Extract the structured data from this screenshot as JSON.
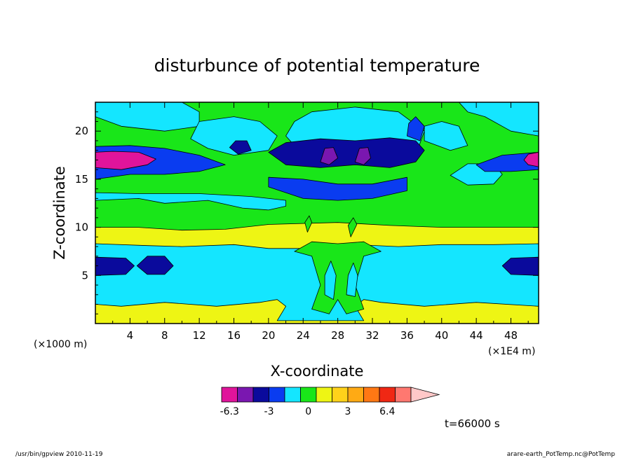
{
  "chart_data": {
    "type": "heatmap",
    "title": "disturbunce of potential temperature",
    "xlabel": "X-coordinate",
    "ylabel": "Z-coordinate",
    "x_unit_left": "(×1000 m)",
    "x_unit_right": "(×1E4 m)",
    "xlim": [
      0,
      51.2
    ],
    "ylim": [
      0,
      23
    ],
    "x_ticks": [
      4,
      8,
      12,
      16,
      20,
      24,
      28,
      32,
      36,
      40,
      44,
      48
    ],
    "y_ticks": [
      5,
      10,
      15,
      20
    ],
    "colorbar": {
      "colors": [
        "#e0149b",
        "#7a17b0",
        "#0a0a9c",
        "#0a3cf0",
        "#14e6ff",
        "#19e619",
        "#eef514",
        "#ffd21a",
        "#ffaa14",
        "#ff7814",
        "#f02814",
        "#ff7870",
        "#ffc8c8"
      ],
      "labels": [
        "-6.3",
        "-3",
        "0",
        "3",
        "6.4"
      ]
    },
    "time_label": "t=66000 s",
    "regions": [
      {
        "level": 4,
        "points": [
          [
            0,
            2
          ],
          [
            3,
            1.8
          ],
          [
            8,
            2.2
          ],
          [
            14,
            1.8
          ],
          [
            19,
            2.2
          ],
          [
            21,
            2.5
          ],
          [
            22,
            1.8
          ],
          [
            21,
            0.3
          ],
          [
            31,
            0.3
          ],
          [
            30,
            1.8
          ],
          [
            31,
            2.5
          ],
          [
            33,
            2.2
          ],
          [
            38,
            1.8
          ],
          [
            44,
            2.2
          ],
          [
            51.2,
            1.8
          ],
          [
            51.2,
            8.3
          ],
          [
            46,
            8.2
          ],
          [
            40,
            8.2
          ],
          [
            35,
            8.0
          ],
          [
            30,
            8.2
          ],
          [
            25,
            7.8
          ],
          [
            20,
            7.8
          ],
          [
            16,
            8.2
          ],
          [
            10,
            8.0
          ],
          [
            6,
            8.1
          ],
          [
            0,
            8.3
          ]
        ]
      },
      {
        "level": 2,
        "points": [
          [
            0,
            5
          ],
          [
            3.5,
            5.1
          ],
          [
            4.5,
            6.0
          ],
          [
            3.5,
            6.8
          ],
          [
            0,
            6.9
          ]
        ]
      },
      {
        "level": 2,
        "points": [
          [
            4.8,
            6.0
          ],
          [
            6,
            5.1
          ],
          [
            8,
            5.1
          ],
          [
            9,
            6.0
          ],
          [
            8,
            7.0
          ],
          [
            6,
            7.0
          ]
        ]
      },
      {
        "level": 2,
        "points": [
          [
            51.2,
            5
          ],
          [
            48,
            5.1
          ],
          [
            47,
            6.0
          ],
          [
            48,
            6.8
          ],
          [
            51.2,
            6.9
          ]
        ]
      },
      {
        "level": 5,
        "points": [
          [
            0,
            10.0
          ],
          [
            5,
            10.0
          ],
          [
            10,
            9.7
          ],
          [
            15,
            9.8
          ],
          [
            20,
            10.3
          ],
          [
            28,
            10.5
          ],
          [
            34,
            10.2
          ],
          [
            40,
            10.0
          ],
          [
            51.2,
            10.0
          ],
          [
            51.2,
            23
          ],
          [
            0,
            23
          ]
        ]
      },
      {
        "level": 4,
        "points": [
          [
            0,
            12.8
          ],
          [
            5,
            13.0
          ],
          [
            8,
            12.5
          ],
          [
            13,
            12.8
          ],
          [
            17,
            12.0
          ],
          [
            20,
            11.8
          ],
          [
            22,
            12.2
          ],
          [
            22,
            12.8
          ],
          [
            18,
            13.2
          ],
          [
            12,
            13.5
          ],
          [
            5,
            13.5
          ],
          [
            0,
            13.6
          ]
        ]
      },
      {
        "level": 4,
        "points": [
          [
            0,
            21.5
          ],
          [
            3,
            20.5
          ],
          [
            8,
            20.0
          ],
          [
            12,
            20.5
          ],
          [
            12,
            22
          ],
          [
            10,
            23
          ],
          [
            0,
            23
          ]
        ]
      },
      {
        "level": 4,
        "points": [
          [
            45,
            21.5
          ],
          [
            48,
            20.0
          ],
          [
            51.2,
            19.5
          ],
          [
            51.2,
            23
          ],
          [
            42,
            23
          ],
          [
            43,
            22
          ]
        ]
      },
      {
        "level": 4,
        "points": [
          [
            11,
            19.2
          ],
          [
            13,
            18.2
          ],
          [
            16,
            17.5
          ],
          [
            20,
            18.0
          ],
          [
            21,
            19.5
          ],
          [
            19,
            21
          ],
          [
            16,
            21.5
          ],
          [
            12,
            21
          ]
        ]
      },
      {
        "level": 4,
        "points": [
          [
            41,
            15.4
          ],
          [
            43,
            14.4
          ],
          [
            46,
            14.5
          ],
          [
            47,
            15.5
          ],
          [
            46,
            16.6
          ],
          [
            43,
            16.6
          ]
        ]
      },
      {
        "level": 4,
        "points": [
          [
            38,
            19.0
          ],
          [
            41,
            18.0
          ],
          [
            43,
            18.5
          ],
          [
            42,
            20.5
          ],
          [
            40,
            21
          ],
          [
            38,
            20.5
          ]
        ]
      },
      {
        "level": 4,
        "points": [
          [
            22,
            19.5
          ],
          [
            24,
            17.5
          ],
          [
            28,
            17.0
          ],
          [
            33,
            17.0
          ],
          [
            37,
            17.5
          ],
          [
            38,
            20
          ],
          [
            35,
            22
          ],
          [
            30,
            22.5
          ],
          [
            25,
            22
          ],
          [
            23,
            21.0
          ]
        ]
      },
      {
        "level": 2,
        "points": [
          [
            20,
            17.8
          ],
          [
            22,
            16.5
          ],
          [
            26,
            16.2
          ],
          [
            30,
            16.5
          ],
          [
            34,
            16.2
          ],
          [
            37,
            16.8
          ],
          [
            38,
            18.0
          ],
          [
            37,
            19.0
          ],
          [
            34,
            19.3
          ],
          [
            30,
            19.0
          ],
          [
            26,
            19.2
          ],
          [
            22,
            18.8
          ]
        ]
      },
      {
        "level": 2,
        "points": [
          [
            15.5,
            18.3
          ],
          [
            16.5,
            17.6
          ],
          [
            18,
            18.0
          ],
          [
            17.5,
            19.0
          ],
          [
            16.2,
            19.0
          ]
        ]
      },
      {
        "level": 1,
        "points": [
          [
            26,
            16.8
          ],
          [
            27,
            16.5
          ],
          [
            28,
            17.2
          ],
          [
            27.5,
            18.3
          ],
          [
            26.5,
            18.2
          ]
        ]
      },
      {
        "level": 1,
        "points": [
          [
            30,
            16.8
          ],
          [
            31,
            16.5
          ],
          [
            31.8,
            17.2
          ],
          [
            31.5,
            18.3
          ],
          [
            30.5,
            18.2
          ]
        ]
      },
      {
        "level": 3,
        "points": [
          [
            0,
            15.0
          ],
          [
            4,
            15.5
          ],
          [
            8,
            15.5
          ],
          [
            12,
            15.8
          ],
          [
            15,
            16.5
          ],
          [
            12,
            17.5
          ],
          [
            8,
            18.2
          ],
          [
            4,
            18.5
          ],
          [
            0,
            18.4
          ]
        ]
      },
      {
        "level": 3,
        "points": [
          [
            44,
            16.5
          ],
          [
            47,
            17.5
          ],
          [
            51.2,
            17.8
          ],
          [
            51.2,
            16.0
          ],
          [
            48,
            15.8
          ],
          [
            45,
            15.8
          ]
        ]
      },
      {
        "level": 3,
        "points": [
          [
            20,
            14.2
          ],
          [
            24,
            13.0
          ],
          [
            28,
            12.8
          ],
          [
            32,
            13.0
          ],
          [
            36,
            13.8
          ],
          [
            36,
            15.2
          ],
          [
            32,
            14.5
          ],
          [
            28,
            14.5
          ],
          [
            24,
            15.0
          ],
          [
            20,
            15.2
          ]
        ]
      },
      {
        "level": 3,
        "points": [
          [
            36,
            19.5
          ],
          [
            37.5,
            19.0
          ],
          [
            38,
            20.5
          ],
          [
            37,
            21.5
          ],
          [
            36.2,
            20.8
          ]
        ]
      },
      {
        "level": 0,
        "points": [
          [
            0,
            16.2
          ],
          [
            3,
            16.0
          ],
          [
            6,
            16.5
          ],
          [
            7,
            17.1
          ],
          [
            5,
            17.8
          ],
          [
            2,
            17.9
          ],
          [
            0,
            17.8
          ]
        ]
      },
      {
        "level": 0,
        "points": [
          [
            51.2,
            16.3
          ],
          [
            50,
            16.5
          ],
          [
            49.5,
            17.0
          ],
          [
            50,
            17.6
          ],
          [
            51.2,
            17.8
          ]
        ]
      },
      {
        "level": 5,
        "points": [
          [
            23,
            7.5
          ],
          [
            25,
            7.0
          ],
          [
            26,
            4.0
          ],
          [
            25,
            1.5
          ],
          [
            27,
            1.0
          ],
          [
            28,
            2.5
          ],
          [
            29,
            1.0
          ],
          [
            31,
            1.5
          ],
          [
            30,
            4.0
          ],
          [
            31,
            7.0
          ],
          [
            33,
            7.5
          ],
          [
            31,
            8.5
          ],
          [
            28,
            8.3
          ],
          [
            25,
            8.5
          ]
        ]
      },
      {
        "level": 5,
        "points": [
          [
            24.5,
            9.5
          ],
          [
            25,
            10.5
          ],
          [
            24.7,
            11.2
          ],
          [
            24.2,
            10.5
          ]
        ]
      },
      {
        "level": 5,
        "points": [
          [
            29.5,
            9.0
          ],
          [
            30.2,
            10.3
          ],
          [
            29.8,
            11.0
          ],
          [
            29.2,
            10.2
          ]
        ]
      },
      {
        "level": 4,
        "points": [
          [
            26.5,
            3.0
          ],
          [
            27.5,
            2.5
          ],
          [
            27.8,
            5.0
          ],
          [
            27.2,
            6.5
          ],
          [
            26.5,
            5.0
          ]
        ]
      },
      {
        "level": 4,
        "points": [
          [
            29,
            3.0
          ],
          [
            30,
            2.8
          ],
          [
            30.3,
            5.0
          ],
          [
            29.8,
            6.3
          ],
          [
            29.2,
            5.0
          ]
        ]
      }
    ]
  },
  "footer": {
    "left": "/usr/bin/gpview   2010-11-19",
    "right": "arare-earth_PotTemp.nc@PotTemp"
  }
}
